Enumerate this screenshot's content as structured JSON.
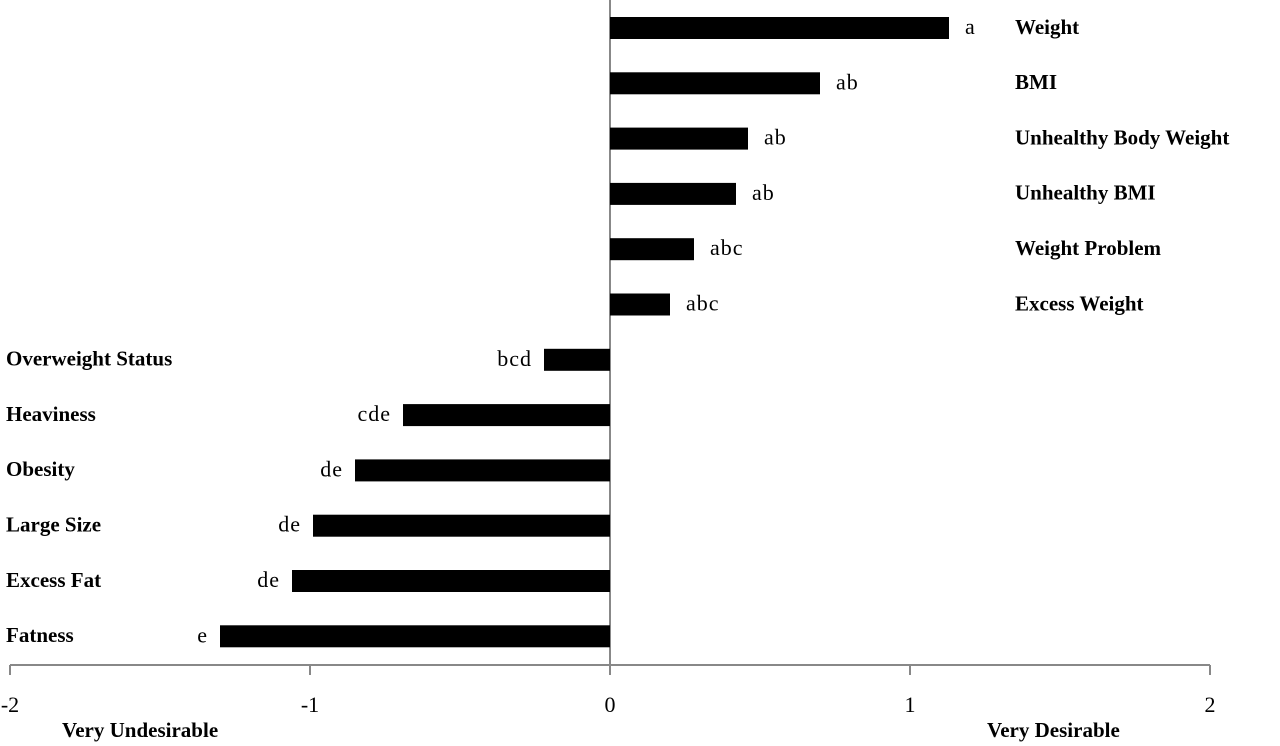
{
  "chart_data": {
    "type": "bar",
    "orientation": "horizontal",
    "categories": [
      "Weight",
      "BMI",
      "Unhealthy Body Weight",
      "Unhealthy BMI",
      "Weight Problem",
      "Excess Weight",
      "Overweight Status",
      "Heaviness",
      "Obesity",
      "Large Size",
      "Excess Fat",
      "Fatness"
    ],
    "values": [
      1.13,
      0.7,
      0.46,
      0.42,
      0.28,
      0.2,
      -0.22,
      -0.69,
      -0.85,
      -0.99,
      -1.06,
      -1.3
    ],
    "letters": [
      "a",
      "ab",
      "ab",
      "ab",
      "abc",
      "abc",
      "bcd",
      "cde",
      "de",
      "de",
      "de",
      "e"
    ],
    "color": "#000000",
    "xlim": [
      -2,
      2
    ],
    "xticks": [
      -2,
      -1,
      0,
      1,
      2
    ],
    "axis_labels": {
      "left": "Very Undesirable",
      "right": "Very Desirable"
    }
  }
}
